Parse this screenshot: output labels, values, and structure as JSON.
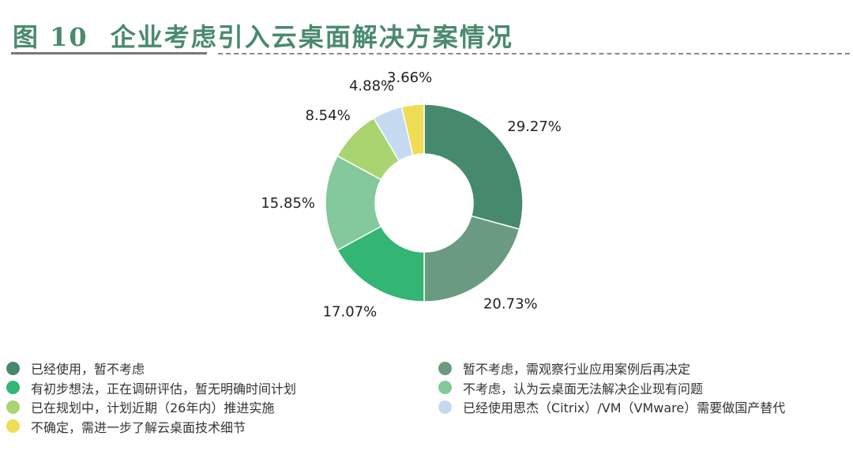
{
  "title": {
    "fig": "图 10",
    "text": "企业考虑引入云桌面解决方案情况"
  },
  "chart_data": {
    "type": "pie",
    "donut": true,
    "title": "企业考虑引入云桌面解决方案情况",
    "legend_position": "bottom",
    "series": [
      {
        "name": "已经使用，暂不考虑",
        "value": 29.27,
        "label": "29.27%",
        "color": "#458a6c"
      },
      {
        "name": "暂不考虑，需观察行业应用案例后再决定",
        "value": 20.73,
        "label": "20.73%",
        "color": "#6a9a80"
      },
      {
        "name": "有初步想法，正在调研评估，暂无明确时间计划",
        "value": 17.07,
        "label": "17.07%",
        "color": "#33b573"
      },
      {
        "name": "不考虑，认为云桌面无法解决企业现有问题",
        "value": 15.85,
        "label": "15.85%",
        "color": "#83c99b"
      },
      {
        "name": "已在规划中，计划近期（26年内）推进实施",
        "value": 8.54,
        "label": "8.54%",
        "color": "#a9d46f"
      },
      {
        "name": "已经使用思杰（Citrix）/VM（VMware）需要做国产替代",
        "value": 4.88,
        "label": "4.88%",
        "color": "#c5daf0"
      },
      {
        "name": "不确定，需进一步了解云桌面技术细节",
        "value": 3.66,
        "label": "3.66%",
        "color": "#f0dc55"
      }
    ]
  }
}
